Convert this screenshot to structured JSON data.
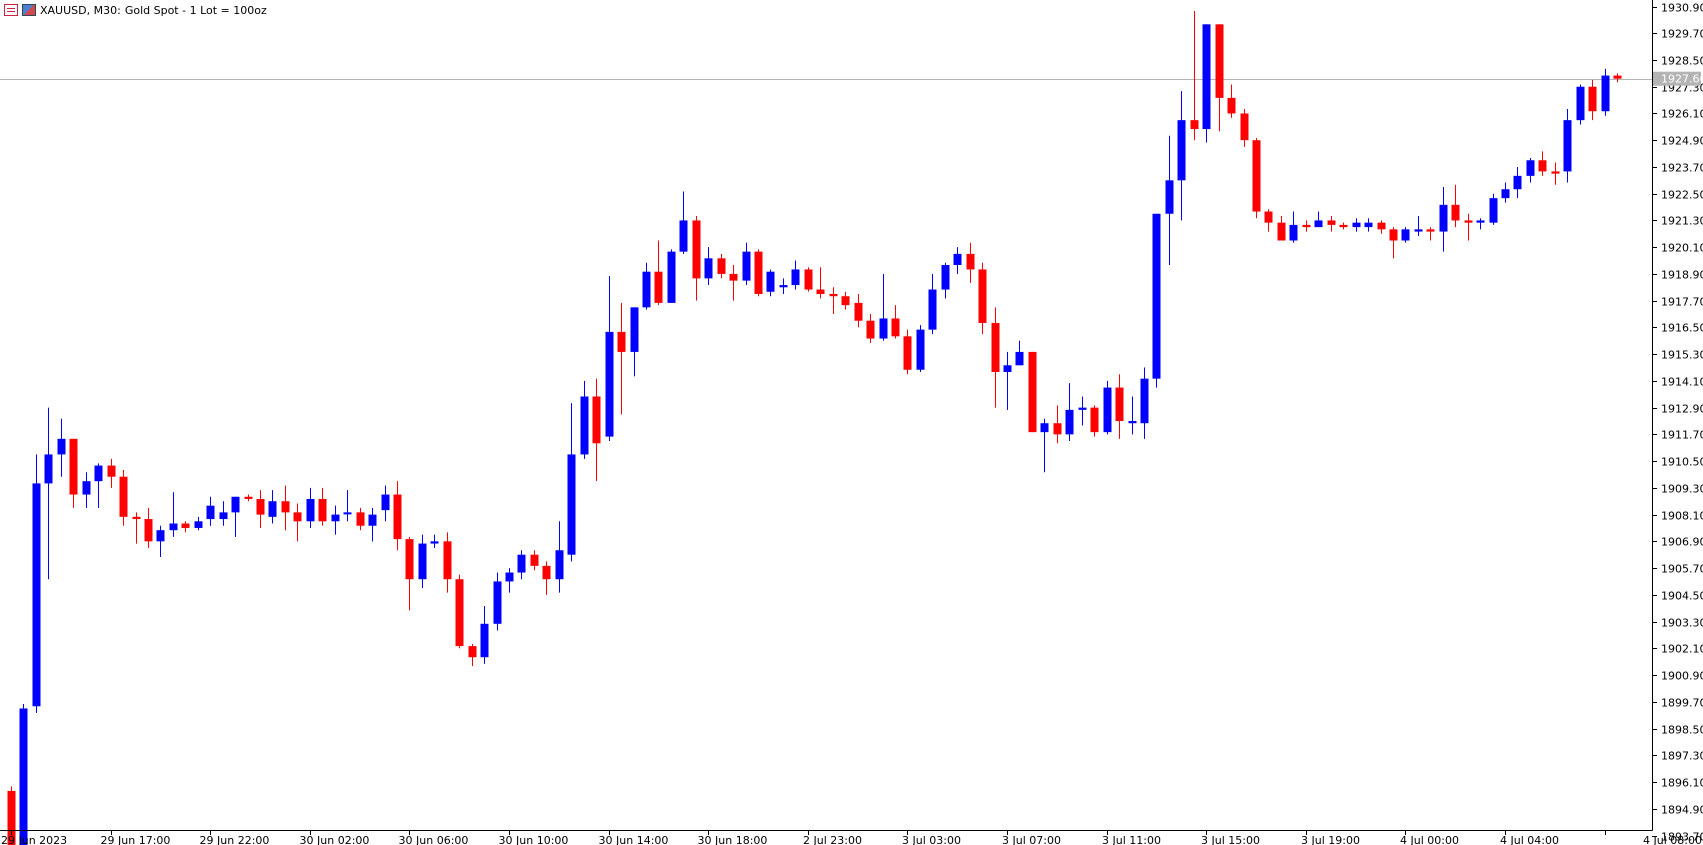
{
  "header": {
    "symbol": "XAUUSD, M30:",
    "description": "Gold Spot - 1 Lot = 100oz",
    "icons": [
      "grid-table-icon",
      "market-watch-icon"
    ]
  },
  "colors": {
    "bull": "#0000ff",
    "bear": "#ff0000",
    "background": "#ffffff",
    "axis": "#000000",
    "bid_line": "#b4b4b4",
    "price_label_bg": "#b4b4b4",
    "price_label_fg": "#ffffff"
  },
  "chart_data": {
    "type": "candlestick",
    "timeframe": "M30",
    "grid": false,
    "ylim": [
      1892.5,
      1931.0
    ],
    "current_price": "1927.66",
    "current_price_value": 1927.66,
    "y_ticks": [
      "1930.90",
      "1929.70",
      "1928.50",
      "1927.30",
      "1926.10",
      "1924.90",
      "1923.70",
      "1922.50",
      "1921.30",
      "1920.10",
      "1918.90",
      "1917.70",
      "1916.50",
      "1915.30",
      "1914.10",
      "1912.90",
      "1911.70",
      "1910.50",
      "1909.30",
      "1908.10",
      "1906.90",
      "1905.70",
      "1904.50",
      "1903.30",
      "1902.10",
      "1900.90",
      "1899.70",
      "1898.50",
      "1897.30",
      "1896.10",
      "1894.90",
      "1893.70"
    ],
    "x_ticks": [
      {
        "label": "29 Jun 2023",
        "index": 0
      },
      {
        "label": "29 Jun 17:00",
        "index": 8
      },
      {
        "label": "29 Jun 22:00",
        "index": 16
      },
      {
        "label": "30 Jun 02:00",
        "index": 24
      },
      {
        "label": "30 Jun 06:00",
        "index": 32
      },
      {
        "label": "30 Jun 10:00",
        "index": 40
      },
      {
        "label": "30 Jun 14:00",
        "index": 48
      },
      {
        "label": "30 Jun 18:00",
        "index": 56
      },
      {
        "label": "2 Jul 23:00",
        "index": 64
      },
      {
        "label": "3 Jul 03:00",
        "index": 72
      },
      {
        "label": "3 Jul 07:00",
        "index": 80
      },
      {
        "label": "3 Jul 11:00",
        "index": 88
      },
      {
        "label": "3 Jul 15:00",
        "index": 96
      },
      {
        "label": "3 Jul 19:00",
        "index": 104
      },
      {
        "label": "4 Jul 00:00",
        "index": 112
      },
      {
        "label": "4 Jul 04:00",
        "index": 120
      },
      {
        "label": "4 Jul 08:00",
        "index": 128
      }
    ],
    "candles": [
      [
        1895.7,
        1895.9,
        1892.9,
        1893.2
      ],
      [
        1893.2,
        1899.6,
        1892.6,
        1899.4
      ],
      [
        1899.5,
        1910.8,
        1899.2,
        1909.5
      ],
      [
        1909.5,
        1912.9,
        1905.2,
        1910.8
      ],
      [
        1910.8,
        1912.4,
        1909.8,
        1911.5
      ],
      [
        1911.5,
        1911.5,
        1908.4,
        1909.0
      ],
      [
        1909.0,
        1910.0,
        1908.4,
        1909.6
      ],
      [
        1909.6,
        1910.4,
        1908.4,
        1910.3
      ],
      [
        1910.3,
        1910.6,
        1909.3,
        1909.8
      ],
      [
        1909.8,
        1910.1,
        1907.6,
        1908.0
      ],
      [
        1908.0,
        1908.2,
        1906.8,
        1907.9
      ],
      [
        1907.9,
        1908.4,
        1906.6,
        1906.9
      ],
      [
        1906.9,
        1907.6,
        1906.2,
        1907.4
      ],
      [
        1907.4,
        1909.1,
        1907.1,
        1907.7
      ],
      [
        1907.7,
        1907.8,
        1907.3,
        1907.5
      ],
      [
        1907.5,
        1908.0,
        1907.4,
        1907.8
      ],
      [
        1907.9,
        1908.9,
        1907.6,
        1908.5
      ],
      [
        1907.9,
        1908.7,
        1907.6,
        1908.2
      ],
      [
        1908.2,
        1908.9,
        1907.1,
        1908.9
      ],
      [
        1908.9,
        1909.0,
        1908.7,
        1908.8
      ],
      [
        1908.8,
        1909.2,
        1907.5,
        1908.1
      ],
      [
        1908.0,
        1909.2,
        1907.7,
        1908.7
      ],
      [
        1908.7,
        1909.4,
        1907.4,
        1908.2
      ],
      [
        1908.2,
        1908.6,
        1906.9,
        1907.8
      ],
      [
        1907.8,
        1909.3,
        1907.5,
        1908.8
      ],
      [
        1908.8,
        1909.3,
        1907.6,
        1907.8
      ],
      [
        1907.8,
        1908.5,
        1907.2,
        1908.1
      ],
      [
        1908.2,
        1909.2,
        1907.8,
        1908.2
      ],
      [
        1908.2,
        1908.4,
        1907.4,
        1907.6
      ],
      [
        1907.6,
        1908.4,
        1906.9,
        1908.1
      ],
      [
        1908.3,
        1909.4,
        1907.8,
        1909.0
      ],
      [
        1909.0,
        1909.6,
        1906.5,
        1907.0
      ],
      [
        1907.0,
        1907.1,
        1903.8,
        1905.2
      ],
      [
        1905.2,
        1907.2,
        1904.8,
        1906.8
      ],
      [
        1906.8,
        1907.2,
        1906.6,
        1906.9
      ],
      [
        1906.9,
        1907.3,
        1904.6,
        1905.2
      ],
      [
        1905.2,
        1905.4,
        1902.1,
        1902.2
      ],
      [
        1902.2,
        1902.3,
        1901.3,
        1901.7
      ],
      [
        1901.7,
        1904.0,
        1901.4,
        1903.2
      ],
      [
        1903.2,
        1905.5,
        1902.9,
        1905.1
      ],
      [
        1905.1,
        1905.7,
        1904.6,
        1905.5
      ],
      [
        1905.5,
        1906.5,
        1905.2,
        1906.3
      ],
      [
        1906.3,
        1906.5,
        1905.6,
        1905.8
      ],
      [
        1905.8,
        1906.0,
        1904.5,
        1905.2
      ],
      [
        1905.2,
        1907.8,
        1904.6,
        1906.5
      ],
      [
        1906.3,
        1913.1,
        1906.0,
        1910.8
      ],
      [
        1910.8,
        1914.1,
        1910.6,
        1913.4
      ],
      [
        1913.4,
        1914.2,
        1909.6,
        1911.3
      ],
      [
        1911.6,
        1918.8,
        1911.4,
        1916.3
      ],
      [
        1916.3,
        1917.6,
        1912.6,
        1915.4
      ],
      [
        1915.4,
        1917.4,
        1914.3,
        1917.4
      ],
      [
        1917.4,
        1919.4,
        1917.3,
        1919.0
      ],
      [
        1919.0,
        1920.4,
        1917.5,
        1917.6
      ],
      [
        1917.6,
        1920.0,
        1917.6,
        1919.9
      ],
      [
        1919.9,
        1922.6,
        1919.8,
        1921.3
      ],
      [
        1921.3,
        1921.5,
        1917.7,
        1918.7
      ],
      [
        1918.7,
        1920.1,
        1918.4,
        1919.6
      ],
      [
        1919.6,
        1919.8,
        1918.7,
        1918.9
      ],
      [
        1918.9,
        1919.3,
        1917.7,
        1918.6
      ],
      [
        1918.6,
        1920.3,
        1918.4,
        1919.9
      ],
      [
        1919.9,
        1920.0,
        1917.9,
        1918.0
      ],
      [
        1918.1,
        1919.1,
        1917.9,
        1919.0
      ],
      [
        1918.3,
        1918.7,
        1918.0,
        1918.4
      ],
      [
        1918.4,
        1919.5,
        1918.2,
        1919.1
      ],
      [
        1919.1,
        1919.2,
        1918.1,
        1918.2
      ],
      [
        1918.2,
        1919.2,
        1917.8,
        1918.0
      ],
      [
        1918.0,
        1918.3,
        1917.1,
        1917.9
      ],
      [
        1917.9,
        1918.1,
        1917.3,
        1917.5
      ],
      [
        1917.6,
        1918.0,
        1916.5,
        1916.8
      ],
      [
        1916.8,
        1917.1,
        1915.8,
        1916.0
      ],
      [
        1916.0,
        1918.9,
        1915.9,
        1916.9
      ],
      [
        1916.9,
        1917.5,
        1916.0,
        1916.1
      ],
      [
        1916.1,
        1916.4,
        1914.4,
        1914.6
      ],
      [
        1914.6,
        1916.6,
        1914.5,
        1916.4
      ],
      [
        1916.4,
        1918.9,
        1916.2,
        1918.2
      ],
      [
        1918.2,
        1919.4,
        1917.8,
        1919.3
      ],
      [
        1919.3,
        1920.1,
        1918.9,
        1919.8
      ],
      [
        1919.8,
        1920.3,
        1918.5,
        1919.1
      ],
      [
        1919.1,
        1919.4,
        1916.2,
        1916.7
      ],
      [
        1916.7,
        1917.4,
        1912.9,
        1914.5
      ],
      [
        1914.5,
        1915.4,
        1912.8,
        1914.8
      ],
      [
        1914.8,
        1915.9,
        1914.8,
        1915.4
      ],
      [
        1915.4,
        1915.4,
        1911.8,
        1911.8
      ],
      [
        1911.8,
        1912.4,
        1910.0,
        1912.2
      ],
      [
        1912.2,
        1913.0,
        1911.3,
        1911.7
      ],
      [
        1911.7,
        1914.0,
        1911.4,
        1912.8
      ],
      [
        1912.8,
        1913.4,
        1912.1,
        1912.9
      ],
      [
        1912.9,
        1913.0,
        1911.6,
        1911.8
      ],
      [
        1911.8,
        1914.1,
        1911.7,
        1913.8
      ],
      [
        1913.8,
        1914.4,
        1911.5,
        1912.3
      ],
      [
        1912.2,
        1913.4,
        1911.7,
        1912.3
      ],
      [
        1912.2,
        1914.7,
        1911.5,
        1914.2
      ],
      [
        1914.2,
        1921.5,
        1913.8,
        1921.6
      ],
      [
        1921.6,
        1925.1,
        1919.3,
        1923.1
      ],
      [
        1923.1,
        1927.1,
        1921.3,
        1925.8
      ],
      [
        1925.8,
        1930.7,
        1924.9,
        1925.4
      ],
      [
        1925.4,
        1930.1,
        1924.8,
        1930.1
      ],
      [
        1930.1,
        1930.1,
        1925.3,
        1926.8
      ],
      [
        1926.8,
        1927.4,
        1925.9,
        1926.1
      ],
      [
        1926.1,
        1926.3,
        1924.6,
        1924.9
      ],
      [
        1924.9,
        1925.0,
        1921.4,
        1921.7
      ],
      [
        1921.7,
        1921.8,
        1920.8,
        1921.2
      ],
      [
        1921.2,
        1921.5,
        1920.4,
        1920.4
      ],
      [
        1920.4,
        1921.7,
        1920.3,
        1921.1
      ],
      [
        1921.1,
        1921.3,
        1920.8,
        1921.0
      ],
      [
        1921.0,
        1921.7,
        1921.0,
        1921.3
      ],
      [
        1921.3,
        1921.5,
        1920.8,
        1921.1
      ],
      [
        1921.1,
        1921.2,
        1920.9,
        1921.0
      ],
      [
        1921.0,
        1921.4,
        1920.8,
        1921.2
      ],
      [
        1921.0,
        1921.4,
        1920.8,
        1921.2
      ],
      [
        1921.2,
        1921.3,
        1920.7,
        1920.9
      ],
      [
        1920.9,
        1921.0,
        1919.6,
        1920.4
      ],
      [
        1920.4,
        1921.0,
        1920.3,
        1920.9
      ],
      [
        1920.8,
        1921.5,
        1920.6,
        1920.9
      ],
      [
        1920.9,
        1921.0,
        1920.4,
        1920.8
      ],
      [
        1920.8,
        1922.8,
        1919.9,
        1922.0
      ],
      [
        1922.0,
        1922.9,
        1921.0,
        1921.3
      ],
      [
        1921.3,
        1921.6,
        1920.4,
        1921.2
      ],
      [
        1921.2,
        1921.4,
        1920.9,
        1921.3
      ],
      [
        1921.2,
        1922.5,
        1921.1,
        1922.3
      ],
      [
        1922.3,
        1923.0,
        1922.1,
        1922.7
      ],
      [
        1922.7,
        1923.7,
        1922.3,
        1923.3
      ],
      [
        1923.3,
        1924.1,
        1923.0,
        1924.0
      ],
      [
        1924.0,
        1924.4,
        1923.3,
        1923.5
      ],
      [
        1923.5,
        1923.9,
        1922.9,
        1923.4
      ],
      [
        1923.5,
        1926.3,
        1923.0,
        1925.8
      ],
      [
        1925.8,
        1927.4,
        1925.6,
        1927.3
      ],
      [
        1927.3,
        1927.6,
        1925.8,
        1926.2
      ],
      [
        1926.2,
        1928.1,
        1926.0,
        1927.8
      ],
      [
        1927.8,
        1927.9,
        1927.5,
        1927.66
      ]
    ]
  }
}
